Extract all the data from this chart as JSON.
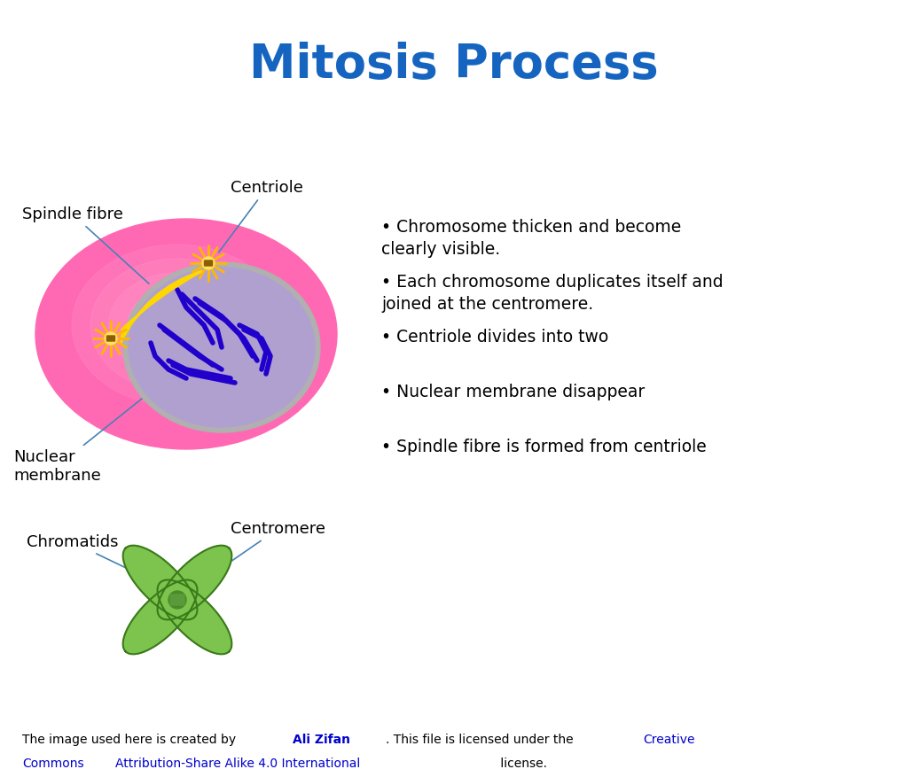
{
  "title": "Mitosis Process",
  "title_color": "#1565C0",
  "title_fontsize": 38,
  "bullet_points": [
    "Chromosome thicken and become\nclearly visible.",
    "Each chromosome duplicates itself and\njoined at the centromere.",
    "Centriole divides into two",
    "Nuclear membrane disappear",
    "Spindle fibre is formed from centriole"
  ],
  "labels": {
    "spindle_fibre": "Spindle fibre",
    "centriole": "Centriole",
    "nuclear_membrane": "Nuclear\nmembrane",
    "chromatids": "Chromatids",
    "centromere": "Centromere"
  },
  "cell_color": "#FF69B4",
  "nucleus_color": "#B0A0D0",
  "nucleus_border_color": "#A090C0",
  "chromosome_color": "#2200CC",
  "spindle_color": "#FFD700",
  "centriole_color": "#FFB800",
  "footer_text_normal": "The image used here is created by ",
  "footer_bold_blue": "Ali Zifan",
  "footer_text_2": ". This file is licensed under the ",
  "footer_link1": "Creative\nCommons",
  "footer_link2": "Attribution-Share Alike 4.0 International",
  "footer_end": " license.",
  "background_color": "#FFFFFF"
}
